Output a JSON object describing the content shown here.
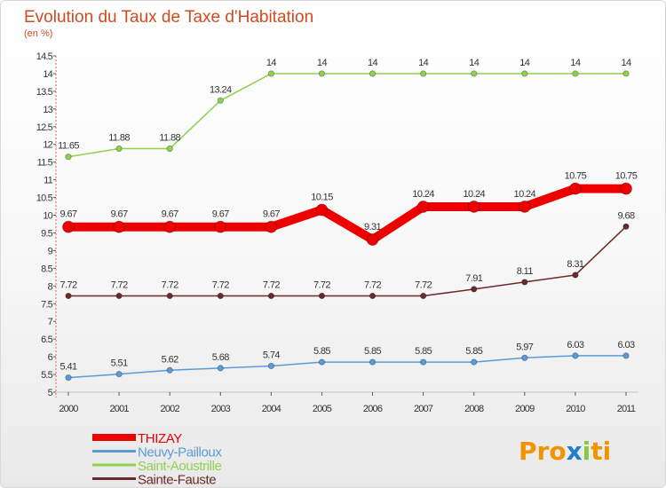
{
  "chart_data": {
    "type": "line",
    "title": "Evolution du Taux de Taxe d'Habitation",
    "subtitle": "(en %)",
    "x": [
      "2000",
      "2001",
      "2002",
      "2003",
      "2004",
      "2005",
      "2006",
      "2007",
      "2008",
      "2009",
      "2010",
      "2011"
    ],
    "ylim": [
      5,
      14.5
    ],
    "yticks": [
      "5",
      "5.5",
      "6",
      "6.5",
      "7",
      "7.5",
      "8",
      "8.5",
      "9",
      "9.5",
      "10",
      "10.5",
      "11",
      "11.5",
      "12",
      "12.5",
      "13",
      "13.5",
      "14",
      "14.5"
    ],
    "grid": false,
    "legend_position": "bottom-left",
    "series": [
      {
        "name": "THIZAY",
        "color": "#ee0000",
        "values": [
          9.67,
          9.67,
          9.67,
          9.67,
          9.67,
          10.15,
          9.31,
          10.24,
          10.24,
          10.24,
          10.75,
          10.75
        ],
        "labels": [
          "9.67",
          "9.67",
          "9.67",
          "9.67",
          "9.67",
          "10.15",
          "9.31",
          "10.24",
          "10.24",
          "10.24",
          "10.75",
          "10.75"
        ]
      },
      {
        "name": "Neuvy-Pailloux",
        "color": "#5b9bd5",
        "values": [
          5.41,
          5.51,
          5.62,
          5.68,
          5.74,
          5.85,
          5.85,
          5.85,
          5.85,
          5.97,
          6.03,
          6.03
        ],
        "labels": [
          "5.41",
          "5.51",
          "5.62",
          "5.68",
          "5.74",
          "5.85",
          "5.85",
          "5.85",
          "5.85",
          "5.97",
          "6.03",
          "6.03"
        ]
      },
      {
        "name": "Saint-Aoustrille",
        "color": "#8fd14f",
        "values": [
          11.65,
          11.88,
          11.88,
          13.24,
          14,
          14,
          14,
          14,
          14,
          14,
          14,
          14
        ],
        "labels": [
          "11.65",
          "11.88",
          "11.88",
          "13.24",
          "14",
          "14",
          "14",
          "14",
          "14",
          "14",
          "14",
          "14"
        ]
      },
      {
        "name": "Sainte-Fauste",
        "color": "#6b2a2a",
        "values": [
          7.72,
          7.72,
          7.72,
          7.72,
          7.72,
          7.72,
          7.72,
          7.72,
          7.91,
          8.11,
          8.31,
          9.68
        ],
        "labels": [
          "7.72",
          "7.72",
          "7.72",
          "7.72",
          "7.72",
          "7.72",
          "7.72",
          "7.72",
          "7.91",
          "8.11",
          "8.31",
          "9.68"
        ]
      }
    ]
  },
  "brand": {
    "letters": [
      "P",
      "r",
      "o",
      "x",
      "i",
      "t",
      "i"
    ],
    "colors": [
      "#f29400",
      "#f29400",
      "#f29400",
      "#1f80c8",
      "#8cc63f",
      "#f29400",
      "#f29400"
    ]
  }
}
